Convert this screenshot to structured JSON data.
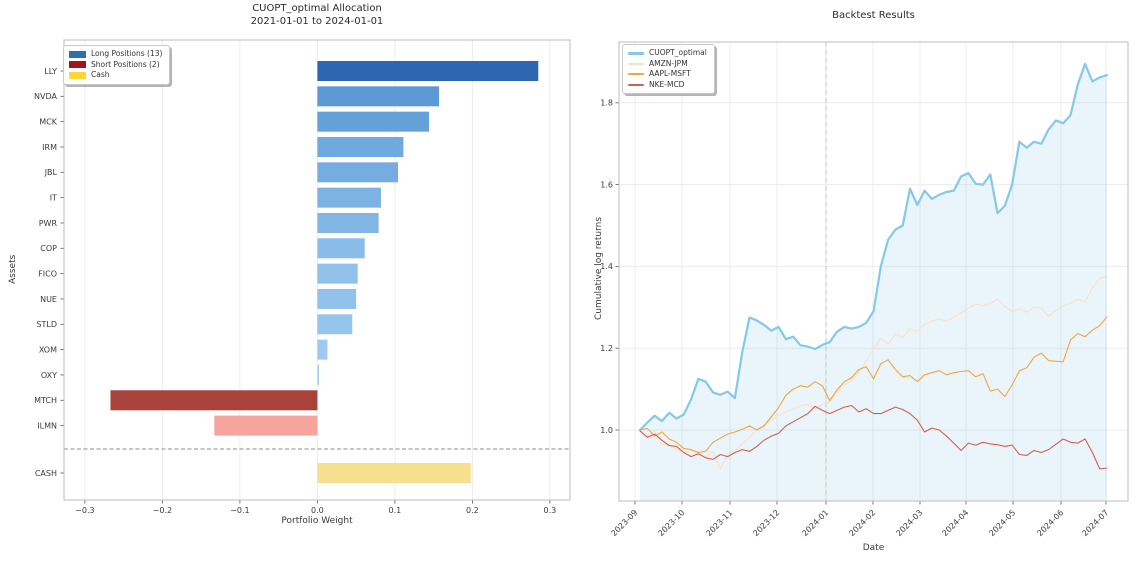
{
  "allocation_chart": {
    "title_line1": "CUOPT_optimal Allocation",
    "title_line2": "2021-01-01 to 2024-01-01",
    "xlabel": "Portfolio Weight",
    "ylabel": "Assets",
    "legend": [
      {
        "label": "Long Positions (13)",
        "color": "#2e6fad"
      },
      {
        "label": "Short Positions (2)",
        "color": "#a31220"
      },
      {
        "label": "Cash",
        "color": "#ffd633"
      }
    ],
    "chart_data": {
      "type": "bar",
      "orientation": "horizontal",
      "categories": [
        "LLY",
        "NVDA",
        "MCK",
        "IRM",
        "JBL",
        "IT",
        "PWR",
        "COP",
        "FICO",
        "NUE",
        "STLD",
        "XOM",
        "OXY",
        "MTCH",
        "ILMN",
        "CASH"
      ],
      "values": [
        0.285,
        0.157,
        0.144,
        0.111,
        0.104,
        0.082,
        0.079,
        0.061,
        0.052,
        0.05,
        0.045,
        0.013,
        0.002,
        -0.267,
        -0.133,
        0.198
      ],
      "colors": [
        "#2d66b1",
        "#5d99d5",
        "#64a0d9",
        "#70a9de",
        "#75ade0",
        "#7db3e3",
        "#80b5e4",
        "#89bce8",
        "#90c1eb",
        "#92c2eb",
        "#95c4ec",
        "#9fcaef",
        "#a5cef1",
        "#a8423a",
        "#f7a49e",
        "#f6df8e"
      ],
      "xticks": [
        -0.3,
        -0.2,
        -0.1,
        0.0,
        0.1,
        0.2,
        0.3
      ],
      "xtick_labels": [
        "−0.3",
        "−0.2",
        "−0.1",
        "0.0",
        "0.1",
        "0.2",
        "0.3"
      ],
      "xlim": [
        -0.327,
        0.326
      ],
      "separator_between": [
        "ILMN",
        "CASH"
      ]
    }
  },
  "backtest_chart": {
    "title": "Backtest Results",
    "xlabel": "Date",
    "ylabel": "Cumulative log returns",
    "chart_data": {
      "type": "line",
      "xtick_labels": [
        "2023-09",
        "2023-10",
        "2023-11",
        "2023-12",
        "2024-01",
        "2024-02",
        "2024-03",
        "2024-04",
        "2024-05",
        "2024-06",
        "2024-07"
      ],
      "yticks": [
        1.0,
        1.2,
        1.4,
        1.6,
        1.8
      ],
      "ytick_labels": [
        "1.0",
        "1.2",
        "1.4",
        "1.6",
        "1.8"
      ],
      "ylim": [
        0.825,
        1.95
      ],
      "reference_vline_at": "2024-01",
      "series": [
        {
          "name": "CUOPT_optimal",
          "color": "#85c8e9",
          "line_width": 2.2,
          "fill_under": true,
          "values": [
            1.0,
            1.018,
            1.035,
            1.022,
            1.042,
            1.028,
            1.038,
            1.075,
            1.125,
            1.118,
            1.092,
            1.086,
            1.094,
            1.078,
            1.19,
            1.275,
            1.268,
            1.257,
            1.243,
            1.252,
            1.222,
            1.228,
            1.207,
            1.204,
            1.198,
            1.208,
            1.215,
            1.24,
            1.252,
            1.248,
            1.252,
            1.262,
            1.29,
            1.4,
            1.465,
            1.49,
            1.5,
            1.59,
            1.55,
            1.585,
            1.565,
            1.575,
            1.582,
            1.585,
            1.62,
            1.628,
            1.602,
            1.6,
            1.625,
            1.53,
            1.548,
            1.6,
            1.705,
            1.69,
            1.705,
            1.7,
            1.735,
            1.757,
            1.75,
            1.77,
            1.845,
            1.895,
            1.852,
            1.862,
            1.868
          ]
        },
        {
          "name": "AMZN-JPM",
          "color": "#fbdfc3",
          "line_width": 1.1,
          "fill_under": false,
          "values": [
            0.998,
            0.985,
            0.998,
            0.965,
            0.962,
            0.953,
            0.945,
            0.95,
            0.94,
            0.934,
            0.947,
            0.905,
            0.942,
            0.95,
            0.966,
            0.982,
            1.002,
            1.012,
            1.024,
            1.035,
            1.045,
            1.051,
            1.059,
            1.063,
            1.052,
            1.062,
            1.068,
            1.092,
            1.11,
            1.122,
            1.14,
            1.168,
            1.198,
            1.224,
            1.21,
            1.235,
            1.226,
            1.248,
            1.24,
            1.258,
            1.266,
            1.272,
            1.266,
            1.276,
            1.286,
            1.298,
            1.308,
            1.304,
            1.31,
            1.32,
            1.302,
            1.29,
            1.296,
            1.288,
            1.3,
            1.298,
            1.278,
            1.292,
            1.303,
            1.31,
            1.32,
            1.313,
            1.348,
            1.37,
            1.376
          ]
        },
        {
          "name": "AAPL-MSFT",
          "color": "#f2a63f",
          "line_width": 1.1,
          "fill_under": false,
          "values": [
            1.0,
            1.004,
            0.985,
            0.995,
            0.978,
            0.97,
            0.955,
            0.952,
            0.945,
            0.948,
            0.97,
            0.98,
            0.99,
            0.995,
            1.002,
            1.01,
            1.0,
            1.01,
            1.032,
            1.055,
            1.085,
            1.1,
            1.108,
            1.105,
            1.118,
            1.108,
            1.072,
            1.098,
            1.118,
            1.128,
            1.148,
            1.155,
            1.125,
            1.162,
            1.172,
            1.148,
            1.13,
            1.133,
            1.118,
            1.135,
            1.14,
            1.145,
            1.135,
            1.14,
            1.143,
            1.145,
            1.13,
            1.138,
            1.095,
            1.1,
            1.082,
            1.11,
            1.145,
            1.152,
            1.178,
            1.188,
            1.17,
            1.168,
            1.167,
            1.22,
            1.236,
            1.228,
            1.244,
            1.255,
            1.277
          ]
        },
        {
          "name": "NKE-MCD",
          "color": "#d4604c",
          "line_width": 1.1,
          "fill_under": false,
          "values": [
            0.998,
            0.982,
            0.99,
            0.975,
            0.962,
            0.96,
            0.945,
            0.935,
            0.942,
            0.932,
            0.928,
            0.94,
            0.935,
            0.945,
            0.952,
            0.948,
            0.96,
            0.975,
            0.985,
            0.992,
            1.01,
            1.02,
            1.03,
            1.04,
            1.058,
            1.048,
            1.04,
            1.048,
            1.056,
            1.06,
            1.044,
            1.052,
            1.04,
            1.04,
            1.048,
            1.056,
            1.05,
            1.04,
            1.024,
            0.995,
            1.005,
            1.0,
            0.985,
            0.968,
            0.95,
            0.968,
            0.963,
            0.97,
            0.966,
            0.964,
            0.96,
            0.963,
            0.94,
            0.938,
            0.95,
            0.945,
            0.952,
            0.965,
            0.978,
            0.97,
            0.968,
            0.978,
            0.945,
            0.905,
            0.907
          ]
        }
      ]
    }
  }
}
